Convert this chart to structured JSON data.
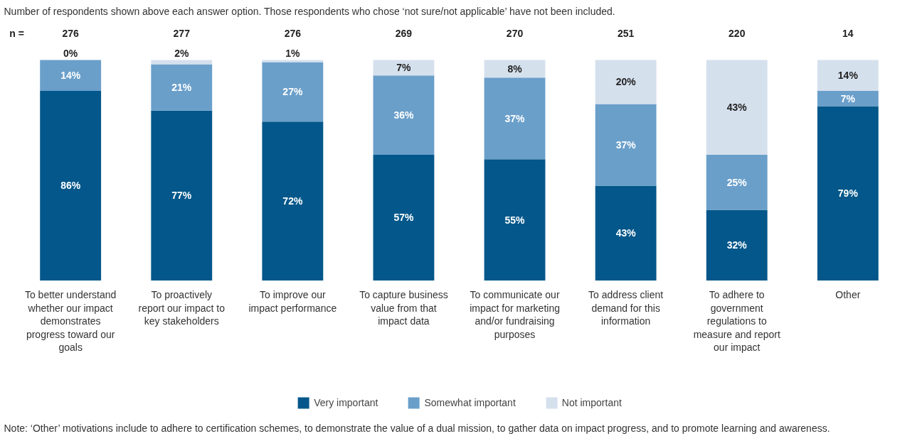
{
  "chart_data": {
    "type": "bar",
    "stacked": true,
    "title": "Number of respondents shown above each answer option. Those respondents who chose ‘not sure/not applicable’ have not been included.",
    "categories": [
      "To better understand whether our impact demonstrates progress toward our goals",
      "To proactively report our impact to key stakeholders",
      "To improve our impact performance",
      "To capture business value from that impact data",
      "To communicate our impact for marketing and/or fundraising purposes",
      "To address client demand for this information",
      "To adhere to government regulations to measure and report our impact",
      "Other"
    ],
    "series": [
      {
        "name": "Very important",
        "color": "#03578a",
        "values": [
          86,
          77,
          72,
          57,
          55,
          43,
          32,
          79
        ],
        "value_labels": [
          "86%",
          "77%",
          "72%",
          "57%",
          "55%",
          "43%",
          "32%",
          "79%"
        ]
      },
      {
        "name": "Somewhat important",
        "color": "#6a9fca",
        "values": [
          14,
          21,
          27,
          36,
          37,
          37,
          25,
          7
        ],
        "value_labels": [
          "14%",
          "21%",
          "27%",
          "36%",
          "37%",
          "37%",
          "25%",
          "7%"
        ]
      },
      {
        "name": "Not important",
        "color": "#d5e0ed",
        "values": [
          0,
          2,
          1,
          7,
          8,
          20,
          43,
          14
        ],
        "value_labels": [
          "0%",
          "2%",
          "1%",
          "7%",
          "8%",
          "20%",
          "43%",
          "14%"
        ]
      }
    ],
    "legend": "bottom",
    "annotations": [
      "n =",
      "276",
      "277",
      "276",
      "269",
      "270",
      "251",
      "220",
      "14",
      "Note: ‘Other’ motivations include to adhere to certification schemes, to demonstrate the value of a dual mission, to gather data on impact progress, and to promote learning and awareness."
    ]
  }
}
